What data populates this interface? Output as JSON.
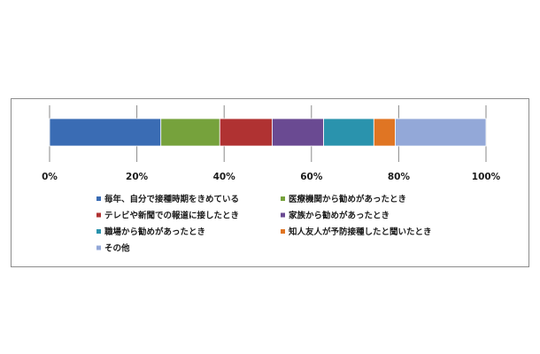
{
  "chart_data": {
    "type": "bar",
    "orientation": "horizontal-stacked",
    "title": "",
    "xlabel": "",
    "ylabel": "",
    "xlim": [
      0,
      100
    ],
    "tick_labels": [
      "0%",
      "20%",
      "40%",
      "60%",
      "80%",
      "100%"
    ],
    "grid": true,
    "legend_position": "bottom",
    "series": [
      {
        "name": "毎年、自分で接種時期をきめている",
        "value": 25.5,
        "color": "#3a6cb4"
      },
      {
        "name": "医療機関から勧めがあったとき",
        "value": 13.5,
        "color": "#76a23c"
      },
      {
        "name": "テレビや新聞での報道に接したとき",
        "value": 12.0,
        "color": "#b03232"
      },
      {
        "name": "家族から勧めがあったとき",
        "value": 11.8,
        "color": "#6a4a92"
      },
      {
        "name": "職場から勧めがあったとき",
        "value": 11.5,
        "color": "#2a93ad"
      },
      {
        "name": "知人友人が予防接種したと聞いたとき",
        "value": 4.9,
        "color": "#e07523"
      },
      {
        "name": "その他",
        "value": 20.8,
        "color": "#93a8d8"
      }
    ]
  }
}
